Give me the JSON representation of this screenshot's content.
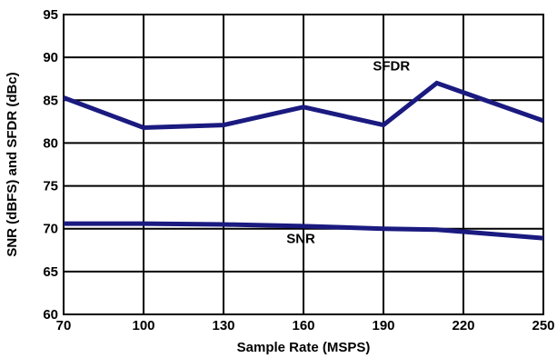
{
  "chart_data": {
    "type": "line",
    "title": "",
    "xlabel": "Sample Rate (MSPS)",
    "ylabel": "SNR (dBFS) and SFDR (dBc)",
    "xlim": [
      70,
      250
    ],
    "ylim": [
      60,
      95
    ],
    "x_ticks": [
      70,
      100,
      130,
      160,
      190,
      220,
      250
    ],
    "y_ticks": [
      60,
      65,
      70,
      75,
      80,
      85,
      90,
      95
    ],
    "grid": true,
    "legend": "none",
    "series": [
      {
        "name": "SFDR",
        "color": "#1a1a80",
        "x": [
          70,
          100,
          130,
          160,
          190,
          210,
          250
        ],
        "y": [
          85.3,
          81.8,
          82.1,
          84.2,
          82.1,
          87.0,
          82.6
        ]
      },
      {
        "name": "SNR",
        "color": "#1a1a80",
        "x": [
          70,
          100,
          130,
          160,
          190,
          210,
          250
        ],
        "y": [
          70.6,
          70.6,
          70.5,
          70.3,
          70.0,
          69.9,
          68.9
        ]
      }
    ],
    "annotations": [
      {
        "text": "SFDR",
        "x": 193,
        "y": 88.5
      },
      {
        "text": "SNR",
        "x": 159,
        "y": 68.3
      }
    ]
  }
}
